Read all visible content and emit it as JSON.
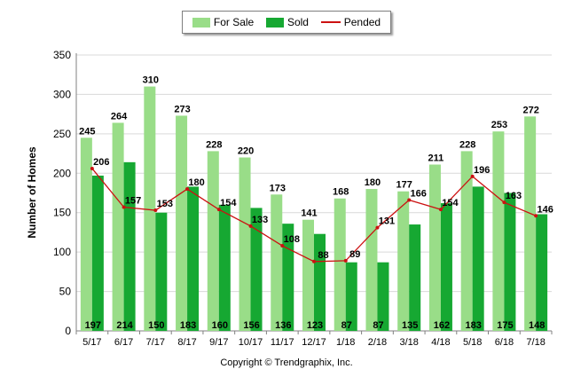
{
  "chart_data": {
    "type": "bar",
    "categories": [
      "5/17",
      "6/17",
      "7/17",
      "8/17",
      "9/17",
      "10/17",
      "11/17",
      "12/17",
      "1/18",
      "2/18",
      "3/18",
      "4/18",
      "5/18",
      "6/18",
      "7/18"
    ],
    "series": [
      {
        "name": "For Sale",
        "kind": "bar",
        "color": "#99dd88",
        "values": [
          245,
          264,
          310,
          273,
          228,
          220,
          173,
          141,
          168,
          180,
          177,
          211,
          228,
          253,
          272
        ]
      },
      {
        "name": "Sold",
        "kind": "bar",
        "color": "#16a832",
        "values": [
          197,
          214,
          150,
          183,
          160,
          156,
          136,
          123,
          87,
          87,
          135,
          162,
          183,
          175,
          148
        ]
      },
      {
        "name": "Pended",
        "kind": "line",
        "color": "#cc1111",
        "values": [
          206,
          157,
          153,
          180,
          154,
          133,
          108,
          88,
          89,
          131,
          166,
          154,
          196,
          163,
          146
        ]
      }
    ],
    "ylabel": "Number of Homes",
    "xlabel": "",
    "ylim": [
      0,
      350
    ],
    "yticks": [
      0,
      50,
      100,
      150,
      200,
      250,
      300,
      350
    ],
    "grid": true,
    "legend_position": "top-center"
  },
  "footer": {
    "copyright": "Copyright © Trendgraphix, Inc."
  }
}
